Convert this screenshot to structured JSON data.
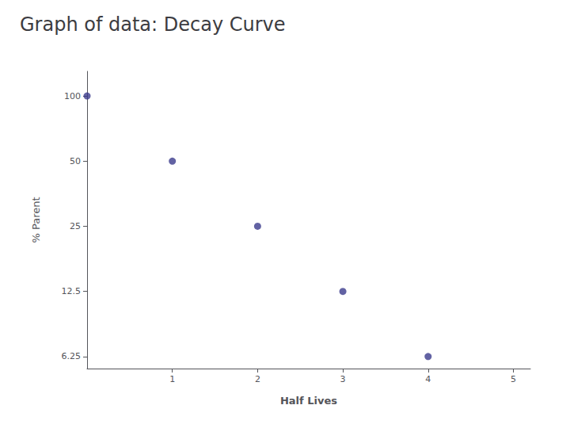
{
  "chart_data": {
    "type": "scatter",
    "title": "Graph of data: Decay Curve",
    "xlabel": "Half Lives",
    "ylabel": "% Parent",
    "x": [
      0,
      1,
      2,
      3,
      4
    ],
    "values": [
      100,
      50,
      25,
      12.5,
      6.25
    ],
    "color": "#3b3b8c",
    "xlim": [
      0,
      5.2
    ],
    "ylim": [
      5.5,
      130
    ],
    "xticks": [
      1,
      2,
      3,
      4,
      5
    ],
    "yticks": [
      6.25,
      12.5,
      25,
      50,
      100
    ],
    "log": "y",
    "grid": false
  }
}
